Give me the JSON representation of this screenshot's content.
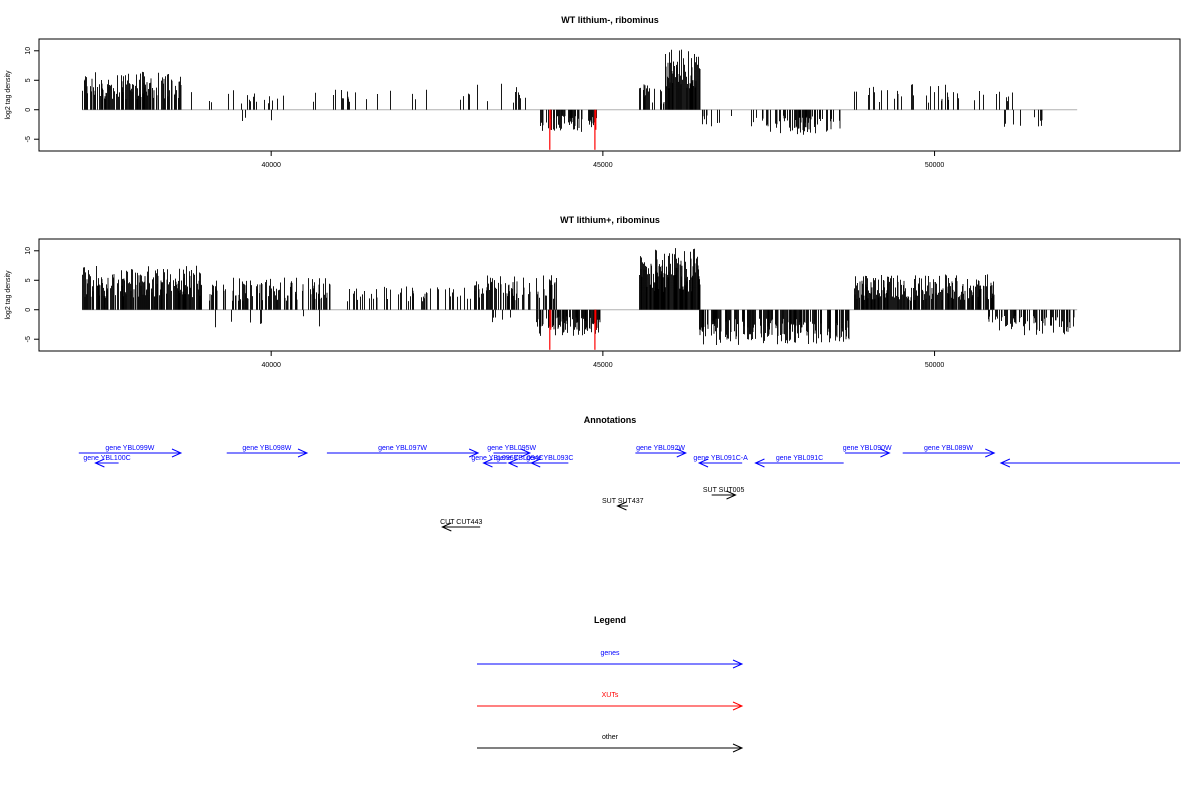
{
  "tracks": [
    {
      "title": "WT lithium-, ribominus",
      "ylabel": "log2 tag density",
      "ylim": [
        -7,
        12
      ],
      "yticks": [
        -5,
        0,
        5,
        10
      ],
      "xlim": [
        36500,
        53700
      ],
      "xticks": [
        40000,
        45000,
        50000
      ],
      "xaxis_label": "",
      "red_spikes": [
        {
          "x": 44200,
          "y": -6.8
        },
        {
          "x": 44880,
          "y": -6.8
        }
      ],
      "plus_blocks": [
        {
          "start": 37150,
          "end": 38630,
          "density": 0.75,
          "min": 1.8,
          "max": 6.5
        },
        {
          "start": 38700,
          "end": 39100,
          "density": 0.08,
          "min": 1.2,
          "max": 3
        },
        {
          "start": 39100,
          "end": 43000,
          "density": 0.12,
          "min": 1.0,
          "max": 3.5
        },
        {
          "start": 43000,
          "end": 43900,
          "density": 0.2,
          "min": 1.2,
          "max": 4.5
        },
        {
          "start": 45550,
          "end": 45950,
          "density": 0.35,
          "min": 1.0,
          "max": 5.5
        },
        {
          "start": 45950,
          "end": 46450,
          "density": 1.0,
          "min": 3.5,
          "max": 10.5
        },
        {
          "start": 48800,
          "end": 51200,
          "density": 0.25,
          "min": 1.2,
          "max": 4.5
        }
      ],
      "minus_blocks": [
        {
          "start": 39400,
          "end": 40000,
          "density": 0.03,
          "min": 1.0,
          "max": 2.5
        },
        {
          "start": 44050,
          "end": 44900,
          "density": 0.65,
          "min": 1.0,
          "max": 3.8
        },
        {
          "start": 46450,
          "end": 47400,
          "density": 0.2,
          "min": 0.8,
          "max": 2.8
        },
        {
          "start": 47400,
          "end": 48600,
          "density": 0.55,
          "min": 1.0,
          "max": 4.3
        },
        {
          "start": 51000,
          "end": 52100,
          "density": 0.08,
          "min": 1.0,
          "max": 3
        }
      ]
    },
    {
      "title": "WT lithium+, ribominus",
      "ylabel": "log2 tag density",
      "ylim": [
        -7,
        12
      ],
      "yticks": [
        -5,
        0,
        5,
        10
      ],
      "xlim": [
        36500,
        53700
      ],
      "xticks": [
        40000,
        45000,
        50000
      ],
      "xaxis_label": "",
      "red_spikes": [
        {
          "x": 44200,
          "y": -6.8
        },
        {
          "x": 44880,
          "y": -6.8
        }
      ],
      "plus_blocks": [
        {
          "start": 37150,
          "end": 38950,
          "density": 0.85,
          "min": 2.0,
          "max": 7.5
        },
        {
          "start": 39050,
          "end": 40900,
          "density": 0.6,
          "min": 1.5,
          "max": 5.5
        },
        {
          "start": 41100,
          "end": 43000,
          "density": 0.35,
          "min": 1.2,
          "max": 4.0
        },
        {
          "start": 43000,
          "end": 44300,
          "density": 0.65,
          "min": 1.5,
          "max": 6.0
        },
        {
          "start": 45550,
          "end": 46450,
          "density": 1.0,
          "min": 3.0,
          "max": 10.5
        },
        {
          "start": 48800,
          "end": 50900,
          "density": 0.85,
          "min": 1.5,
          "max": 6.0
        }
      ],
      "minus_blocks": [
        {
          "start": 39100,
          "end": 40900,
          "density": 0.06,
          "min": 1.0,
          "max": 3
        },
        {
          "start": 43300,
          "end": 44000,
          "density": 0.15,
          "min": 0.8,
          "max": 2.5
        },
        {
          "start": 44000,
          "end": 44950,
          "density": 0.75,
          "min": 1.0,
          "max": 4.5
        },
        {
          "start": 46450,
          "end": 48700,
          "density": 0.7,
          "min": 1.5,
          "max": 6.0
        },
        {
          "start": 50800,
          "end": 52100,
          "density": 0.55,
          "min": 1.0,
          "max": 4.5
        }
      ]
    }
  ],
  "annotations": {
    "title": "Annotations",
    "xlim": [
      36500,
      53700
    ],
    "genes_color": "#0000ff",
    "other_color": "#000000",
    "items": [
      {
        "label": "gene YBL100C",
        "start": 37350,
        "end": 37700,
        "strand": "-",
        "color": "blue",
        "row": 1
      },
      {
        "label": "gene YBL099W",
        "start": 37100,
        "end": 38640,
        "strand": "+",
        "color": "blue",
        "row": 0
      },
      {
        "label": "gene YBL098W",
        "start": 39330,
        "end": 40540,
        "strand": "+",
        "color": "blue",
        "row": 0
      },
      {
        "label": "gene YBL097W",
        "start": 40840,
        "end": 43120,
        "strand": "+",
        "color": "blue",
        "row": 0
      },
      {
        "label": "gene YBL095W",
        "start": 43350,
        "end": 43900,
        "strand": "+",
        "color": "blue",
        "row": 0
      },
      {
        "label": "gene YBL096C",
        "start": 43200,
        "end": 43550,
        "strand": "-",
        "color": "blue",
        "row": 1
      },
      {
        "label": "gene YBL094C",
        "start": 43580,
        "end": 43920,
        "strand": "-",
        "color": "blue",
        "row": 1
      },
      {
        "label": "gene YBL093C",
        "start": 43920,
        "end": 44480,
        "strand": "-",
        "color": "blue",
        "row": 1
      },
      {
        "label": "gene YBL092W",
        "start": 45490,
        "end": 46250,
        "strand": "+",
        "color": "blue",
        "row": 0
      },
      {
        "label": "gene YBL091C-A",
        "start": 46450,
        "end": 47100,
        "strand": "-",
        "color": "blue",
        "row": 1
      },
      {
        "label": "gene YBL091C",
        "start": 47300,
        "end": 48630,
        "strand": "-",
        "color": "blue",
        "row": 1
      },
      {
        "label": "gene YBL090W",
        "start": 48650,
        "end": 49320,
        "strand": "+",
        "color": "blue",
        "row": 0
      },
      {
        "label": "gene YBL089W",
        "start": 49520,
        "end": 50900,
        "strand": "+",
        "color": "blue",
        "row": 0
      },
      {
        "label": "",
        "start": 51000,
        "end": 53700,
        "strand": "-",
        "color": "blue",
        "row": 1
      },
      {
        "label": "SUT SUT437",
        "start": 45220,
        "end": 45380,
        "strand": "-",
        "color": "black",
        "row": 2
      },
      {
        "label": "SUT SUT005",
        "start": 46640,
        "end": 47000,
        "strand": "+",
        "color": "black",
        "row": 3
      },
      {
        "label": "CUT CUT443",
        "start": 42580,
        "end": 43150,
        "strand": "-",
        "color": "black",
        "row": 4
      }
    ]
  },
  "legend": {
    "title": "Legend",
    "items": [
      {
        "label": "genes",
        "color": "#0000ff"
      },
      {
        "label": "XUTs",
        "color": "#ff0000"
      },
      {
        "label": "other",
        "color": "#000000"
      }
    ]
  },
  "colors": {
    "signal": "#000000",
    "axis": "#000000",
    "zero_line": "#b0b0b0",
    "xut": "#ff0000"
  }
}
